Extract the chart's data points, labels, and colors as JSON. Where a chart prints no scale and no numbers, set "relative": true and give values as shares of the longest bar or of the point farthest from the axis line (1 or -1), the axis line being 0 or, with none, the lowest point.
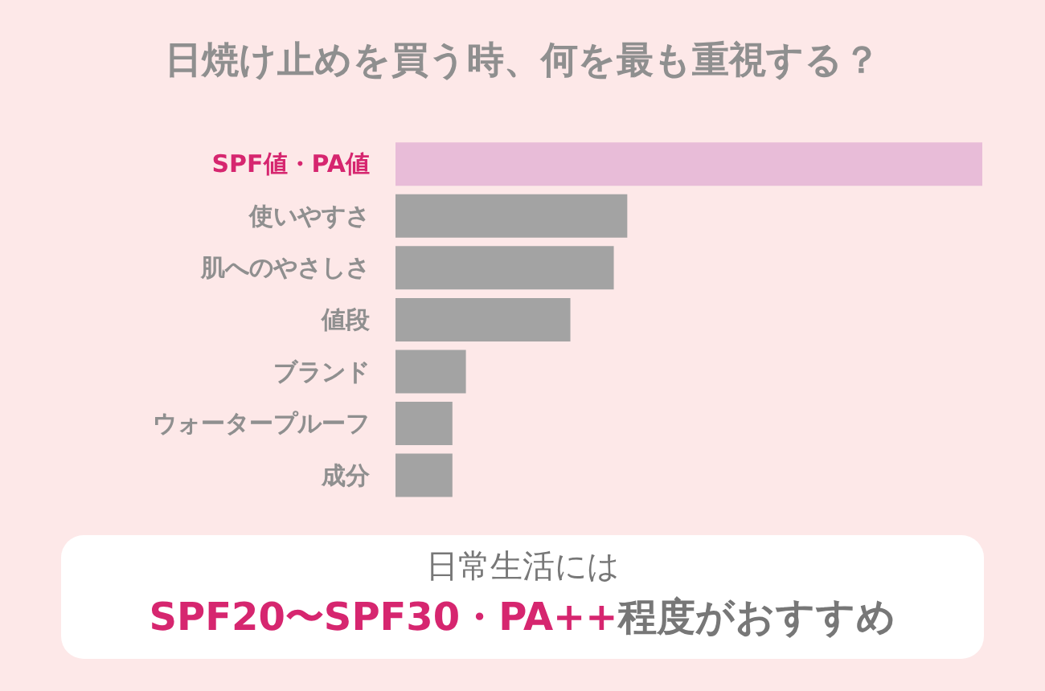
{
  "chart_data": {
    "type": "bar",
    "orientation": "horizontal",
    "relative": true,
    "title": "日焼け止めを買う時、何を最も重視する？",
    "categories": [
      "SPF値・PA値",
      "使いやすさ",
      "肌へのやさしさ",
      "値段",
      "ブランド",
      "ウォータープルーフ",
      "成分"
    ],
    "values": [
      1,
      0.395,
      0.372,
      0.298,
      0.12,
      0.097,
      0.097
    ],
    "colors": [
      "#e8bcd8",
      "#a3a3a3",
      "#a3a3a3",
      "#a3a3a3",
      "#a3a3a3",
      "#a3a3a3",
      "#a3a3a3"
    ],
    "annotations": [
      "日常生活には",
      "SPF20〜SPF30・PA++",
      "程度がおすすめ"
    ]
  }
}
